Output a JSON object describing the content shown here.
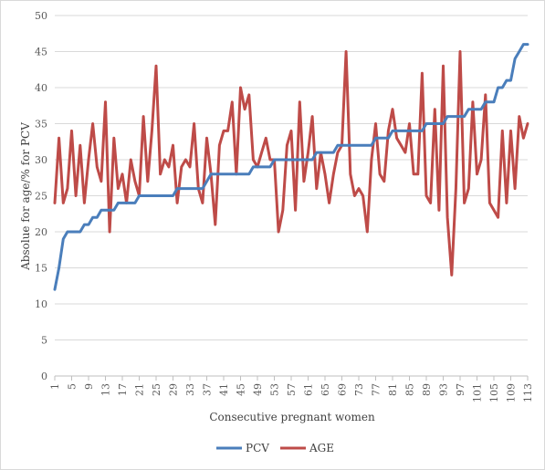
{
  "chart_data": {
    "type": "line",
    "title": "",
    "xlabel": "Consecutive pregnant women",
    "ylabel": "Absolue for age/% for PCV",
    "ylim": [
      0,
      50
    ],
    "yticks": [
      0,
      5,
      10,
      15,
      20,
      25,
      30,
      35,
      40,
      45,
      50
    ],
    "xticks": [
      1,
      5,
      9,
      13,
      17,
      21,
      25,
      29,
      33,
      37,
      41,
      45,
      49,
      53,
      57,
      61,
      65,
      69,
      73,
      77,
      81,
      85,
      89,
      93,
      97,
      101,
      105,
      109,
      113
    ],
    "xlim": [
      1,
      113
    ],
    "grid": true,
    "legend": "bottom",
    "colors": {
      "PCV": "#4a7ebb",
      "AGE": "#be4b48",
      "grid": "#d9d9d9",
      "axis": "#bfbfbf"
    },
    "series": [
      {
        "name": "PCV",
        "x": [
          1,
          2,
          3,
          4,
          6,
          7,
          8,
          9,
          10,
          11,
          12,
          13,
          14,
          15,
          16,
          18,
          19,
          20,
          21,
          22,
          29,
          30,
          35,
          36,
          37,
          38,
          47,
          48,
          52,
          53,
          62,
          63,
          67,
          68,
          76,
          77,
          80,
          81,
          88,
          89,
          93,
          94,
          98,
          99,
          102,
          103,
          105,
          106,
          107,
          108,
          109,
          110,
          111,
          112,
          113
        ],
        "values": [
          12,
          15,
          19,
          20,
          20,
          20,
          21,
          21,
          22,
          22,
          23,
          23,
          23,
          23,
          24,
          24,
          24,
          24,
          25,
          25,
          25,
          26,
          26,
          26,
          27,
          28,
          28,
          29,
          29,
          30,
          30,
          31,
          31,
          32,
          32,
          33,
          33,
          34,
          34,
          35,
          35,
          36,
          36,
          37,
          37,
          38,
          38,
          40,
          40,
          41,
          41,
          44,
          45,
          46,
          46
        ]
      },
      {
        "name": "AGE",
        "x": [
          1,
          2,
          3,
          4,
          5,
          6,
          7,
          8,
          9,
          10,
          11,
          12,
          13,
          14,
          15,
          16,
          17,
          18,
          19,
          20,
          21,
          22,
          23,
          24,
          25,
          26,
          27,
          28,
          29,
          30,
          31,
          32,
          33,
          34,
          35,
          36,
          37,
          38,
          39,
          40,
          41,
          42,
          43,
          44,
          45,
          46,
          47,
          48,
          49,
          50,
          51,
          52,
          53,
          54,
          55,
          56,
          57,
          58,
          59,
          60,
          61,
          62,
          63,
          64,
          65,
          66,
          67,
          68,
          69,
          70,
          71,
          72,
          73,
          74,
          75,
          76,
          77,
          78,
          79,
          80,
          81,
          82,
          83,
          84,
          85,
          86,
          87,
          88,
          89,
          90,
          91,
          92,
          93,
          94,
          95,
          96,
          97,
          98,
          99,
          100,
          101,
          102,
          103,
          104,
          105,
          106,
          107,
          108,
          109,
          110,
          111,
          112,
          113
        ],
        "values": [
          24,
          33,
          24,
          26,
          34,
          25,
          32,
          24,
          30,
          35,
          29,
          27,
          38,
          20,
          33,
          26,
          28,
          24,
          30,
          27,
          25,
          36,
          27,
          34,
          43,
          28,
          30,
          29,
          32,
          24,
          29,
          30,
          29,
          35,
          26,
          24,
          33,
          28,
          21,
          32,
          34,
          34,
          38,
          28,
          40,
          37,
          39,
          30,
          29,
          31,
          33,
          30,
          30,
          20,
          23,
          32,
          34,
          23,
          38,
          27,
          31,
          36,
          26,
          31,
          28,
          24,
          28,
          31,
          32,
          45,
          28,
          25,
          26,
          25,
          20,
          30,
          35,
          28,
          27,
          34,
          37,
          33,
          32,
          31,
          35,
          28,
          28,
          42,
          25,
          24,
          37,
          23,
          43,
          22,
          14,
          26,
          45,
          24,
          26,
          38,
          28,
          30,
          39,
          24,
          23,
          22,
          34,
          24,
          34,
          26,
          36,
          33,
          35
        ]
      }
    ]
  }
}
